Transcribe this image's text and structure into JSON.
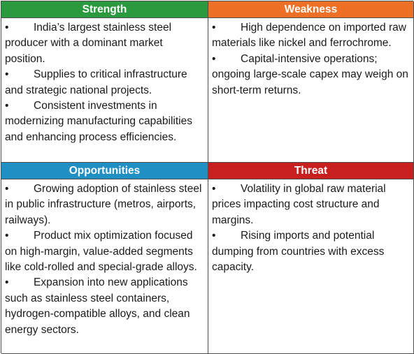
{
  "strength": {
    "title": "Strength",
    "items": [
      "India’s largest stainless steel producer with a dominant market position.",
      "Supplies to critical infrastructure and strategic national projects.",
      "Consistent investments in modernizing manufacturing capabilities and enhancing process efficiencies."
    ]
  },
  "weakness": {
    "title": "Weakness",
    "items": [
      "High dependence on imported raw materials like nickel and ferrochrome.",
      "Capital-intensive operations; ongoing large-scale capex may weigh on short-term returns."
    ]
  },
  "opportunities": {
    "title": "Opportunities",
    "items": [
      "Growing adoption of stainless steel in public infrastructure (metros, airports, railways).",
      "Product mix optimization focused on high-margin, value-added segments like cold-rolled and special-grade alloys.",
      "Expansion into new applications such as stainless steel containers, hydrogen-compatible alloys, and clean energy sectors."
    ]
  },
  "threat": {
    "title": "Threat",
    "items": [
      "Volatility in global raw material prices impacting cost structure and margins.",
      "Rising imports and potential dumping from countries with excess capacity."
    ]
  },
  "bullet_symbol": "•",
  "colors": {
    "strength": "#2b9a3f",
    "weakness": "#ee6f26",
    "opportunities": "#1f8fc4",
    "threat": "#c81f1f"
  }
}
